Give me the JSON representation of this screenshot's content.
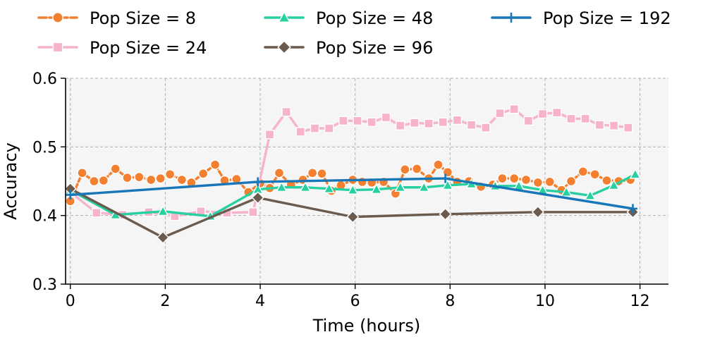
{
  "chart_data": {
    "type": "line",
    "title": "",
    "xlabel": "Time (hours)",
    "ylabel": "Accuracy",
    "xlim": [
      -0.1,
      12.6
    ],
    "ylim": [
      0.3,
      0.6
    ],
    "xticks": [
      0,
      2,
      4,
      6,
      8,
      10,
      12
    ],
    "yticks": [
      0.3,
      0.4,
      0.5,
      0.6
    ],
    "xtick_labels": [
      "0",
      "2",
      "4",
      "6",
      "8",
      "10",
      "12"
    ],
    "ytick_labels": [
      "0.3",
      "0.4",
      "0.5",
      "0.6"
    ],
    "grid": true,
    "legend_position": "top, above plot, 3 columns",
    "series": [
      {
        "name": "Pop Size = 8",
        "color": "#f28030",
        "marker": "circle",
        "dashed": true,
        "x": [
          0.0,
          0.25,
          0.5,
          0.7,
          0.95,
          1.2,
          1.45,
          1.7,
          1.9,
          2.1,
          2.35,
          2.55,
          2.8,
          3.05,
          3.25,
          3.5,
          3.75,
          4.0,
          4.2,
          4.4,
          4.65,
          4.9,
          5.1,
          5.3,
          5.5,
          5.7,
          5.95,
          6.15,
          6.35,
          6.6,
          6.85,
          7.05,
          7.3,
          7.55,
          7.75,
          7.95,
          8.15,
          8.4,
          8.65,
          8.9,
          9.1,
          9.35,
          9.6,
          9.85,
          10.1,
          10.35,
          10.55,
          10.8,
          11.05,
          11.3,
          11.55,
          11.8
        ],
        "values": [
          0.421,
          0.462,
          0.45,
          0.451,
          0.468,
          0.455,
          0.456,
          0.452,
          0.454,
          0.46,
          0.452,
          0.448,
          0.461,
          0.474,
          0.451,
          0.453,
          0.434,
          0.447,
          0.44,
          0.462,
          0.445,
          0.452,
          0.462,
          0.461,
          0.436,
          0.444,
          0.452,
          0.449,
          0.448,
          0.449,
          0.432,
          0.467,
          0.468,
          0.454,
          0.474,
          0.463,
          0.449,
          0.45,
          0.442,
          0.445,
          0.454,
          0.454,
          0.452,
          0.448,
          0.449,
          0.437,
          0.45,
          0.464,
          0.46,
          0.451,
          0.45,
          0.452
        ]
      },
      {
        "name": "Pop Size = 24",
        "color": "#f7b3cb",
        "marker": "square",
        "dashed": false,
        "x": [
          0.0,
          0.55,
          1.1,
          1.65,
          2.2,
          2.75,
          3.3,
          3.85,
          4.2,
          4.55,
          4.85,
          5.15,
          5.45,
          5.75,
          6.05,
          6.35,
          6.65,
          6.95,
          7.25,
          7.55,
          7.85,
          8.15,
          8.45,
          8.75,
          9.05,
          9.35,
          9.65,
          9.95,
          10.25,
          10.55,
          10.85,
          11.15,
          11.45,
          11.75
        ],
        "values": [
          0.434,
          0.404,
          0.401,
          0.405,
          0.399,
          0.406,
          0.404,
          0.405,
          0.518,
          0.551,
          0.522,
          0.527,
          0.527,
          0.538,
          0.538,
          0.536,
          0.543,
          0.531,
          0.535,
          0.534,
          0.536,
          0.539,
          0.532,
          0.528,
          0.549,
          0.555,
          0.538,
          0.548,
          0.55,
          0.541,
          0.541,
          0.532,
          0.531,
          0.528
        ]
      },
      {
        "name": "Pop Size = 48",
        "color": "#26d0a0",
        "marker": "triangle",
        "dashed": false,
        "x": [
          0.0,
          0.95,
          1.95,
          2.95,
          3.95,
          4.45,
          4.95,
          5.45,
          5.95,
          6.45,
          6.95,
          7.45,
          7.95,
          8.45,
          8.95,
          9.45,
          9.95,
          10.45,
          10.95,
          11.45,
          11.9
        ],
        "values": [
          0.437,
          0.401,
          0.406,
          0.399,
          0.438,
          0.441,
          0.441,
          0.439,
          0.437,
          0.438,
          0.441,
          0.441,
          0.444,
          0.446,
          0.443,
          0.443,
          0.437,
          0.434,
          0.429,
          0.444,
          0.46
        ]
      },
      {
        "name": "Pop Size = 96",
        "color": "#6b5b4e",
        "marker": "diamond",
        "dashed": false,
        "x": [
          0.0,
          1.95,
          3.95,
          5.95,
          7.9,
          9.85,
          11.85
        ],
        "values": [
          0.439,
          0.368,
          0.426,
          0.398,
          0.402,
          0.405,
          0.405
        ]
      },
      {
        "name": "Pop Size = 192",
        "color": "#1877b8",
        "marker": "plus",
        "dashed": false,
        "x": [
          0.0,
          3.95,
          7.9,
          11.85
        ],
        "values": [
          0.43,
          0.449,
          0.454,
          0.41
        ]
      }
    ]
  }
}
